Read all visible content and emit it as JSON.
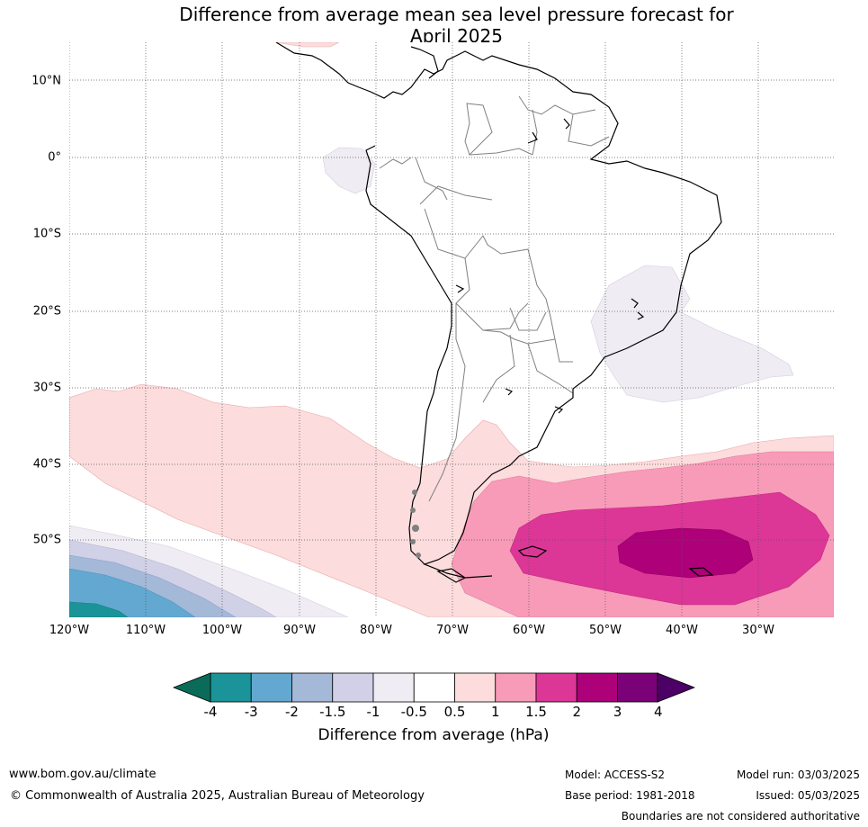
{
  "title_line1": "Difference from average mean sea level pressure forecast for",
  "title_line2": "April 2025",
  "lat_labels": [
    "10°N",
    "0°",
    "10°S",
    "20°S",
    "30°S",
    "40°S",
    "50°S"
  ],
  "lon_labels": [
    "120°W",
    "110°W",
    "100°W",
    "90°W",
    "80°W",
    "70°W",
    "60°W",
    "50°W",
    "40°W",
    "30°W"
  ],
  "colorbar": {
    "ticks": [
      "-4",
      "-3",
      "-2",
      "-1.5",
      "-1",
      "-0.5",
      "0.5",
      "1",
      "1.5",
      "2",
      "3",
      "4"
    ],
    "colors": [
      "#1a9499",
      "#63a8d0",
      "#a4b8d8",
      "#d0d0e6",
      "#efecf3",
      "#ffffff",
      "#fcdcdc",
      "#f89bb8",
      "#dc3697",
      "#ad0079",
      "#7a0177"
    ],
    "low_extend_color": "#0a6b5a",
    "high_extend_color": "#4d0066",
    "label": "Difference from average (hPa)"
  },
  "footer": {
    "website": "www.bom.gov.au/climate",
    "copyright": "© Commonwealth of Australia 2025, Australian Bureau of Meteorology",
    "model": "Model: ACCESS-S2",
    "base_period": "Base period: 1981-2018",
    "model_run": "Model run: 03/03/2025",
    "issued": "Issued: 05/03/2025",
    "boundaries_note": "Boundaries are not considered authoritative"
  }
}
